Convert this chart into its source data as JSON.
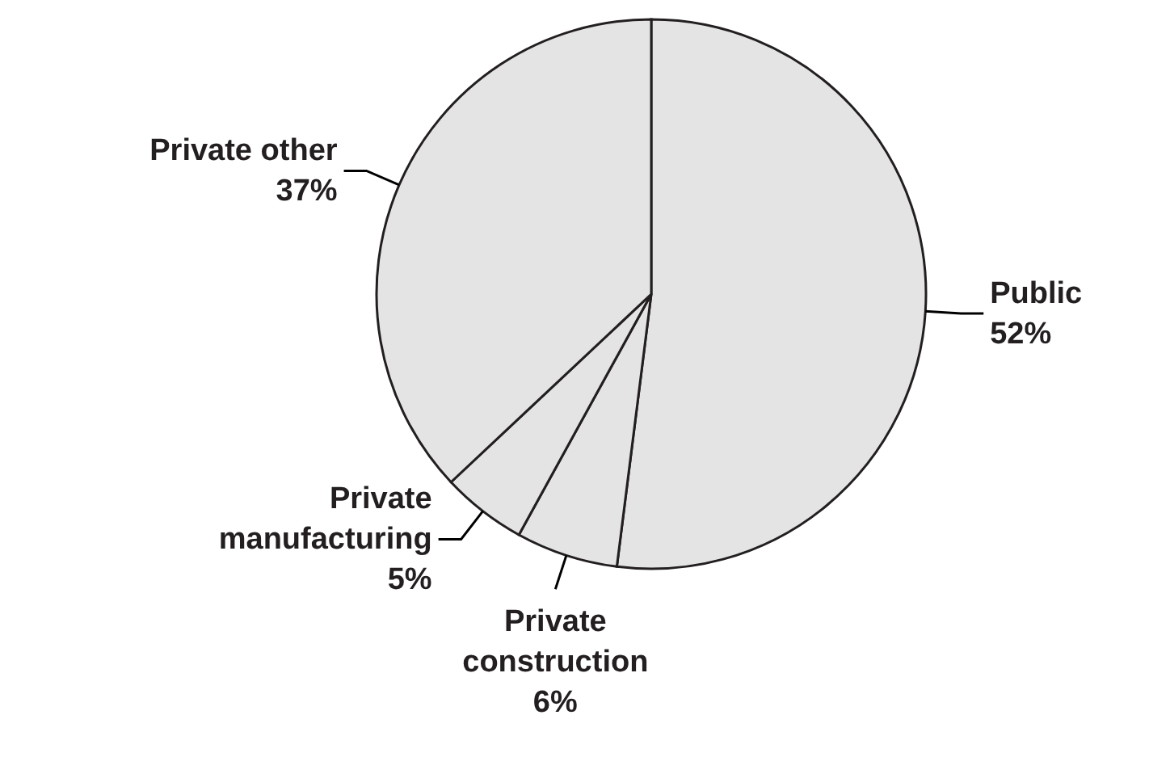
{
  "chart_data": {
    "type": "pie",
    "categories": [
      "Public",
      "Private construction",
      "Private manufacturing",
      "Private other"
    ],
    "values": [
      52,
      6,
      5,
      37
    ],
    "value_labels": [
      "52%",
      "6%",
      "5%",
      "37%"
    ],
    "colors": [
      "#e4e4e4",
      "#e4e4e4",
      "#e4e4e4",
      "#e4e4e4"
    ],
    "legend": false
  }
}
